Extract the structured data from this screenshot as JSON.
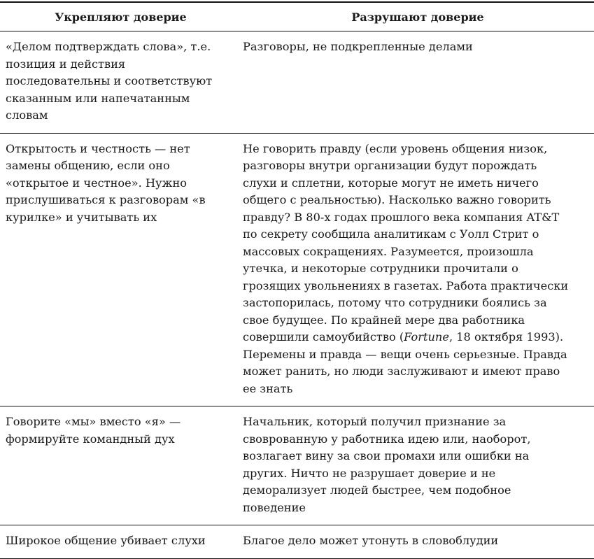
{
  "headers": [
    "Укрепляют доверие",
    "Разрушают доверие"
  ],
  "rows": [
    {
      "left": [
        "«Делом подтверждать слова», т.е.",
        "позиция и действия",
        "последовательны и соответствуют",
        "сказанным или напечатанным",
        "словам"
      ],
      "right": [
        "Разговоры, не подкрепленные делами"
      ]
    },
    {
      "left": [
        "Открытость и честность — нет",
        "замены общению, если оно",
        "«открытое и честное». Нужно",
        "прислушиваться к разговорам «в",
        "курилке» и учитывать их"
      ],
      "right": [
        "Не говорить правду (если уровень общения низок,",
        "разговоры внутри организации будут порождать",
        "слухи и сплетни, которые могут не иметь ничего",
        "общего с реальностью). Насколько важно говорить",
        "правду? В 80-х годах прошлого века компания AT&T",
        "по секрету сообщила аналитикам с Уолл Стрит о",
        "массовых сокращениях. Разумеется, произошла",
        "утечка, и некоторые сотрудники прочитали о",
        "грозящих увольнениях в газетах. Работа практически",
        "застопорилась, потому что сотрудники боялись за",
        "свое будущее. По крайней мере два работника",
        "совершили самоубийство (",
        "Перемены и правда — вещи очень серьезные. Правда",
        "может ранить, но люди заслуживают и имеют право",
        "ее знать"
      ],
      "right_italic": "Fortune",
      "right_after_italic": ", 18 октября 1993)."
    },
    {
      "left": [
        "Говорите «мы» вместо «я» —",
        "формируйте командный дух"
      ],
      "right": [
        "Начальник, который получил признание за",
        "своврованную у работника идею или, наоборот,",
        "возлагает вину за свои промахи или ошибки на",
        "других. Ничто не разрушает доверие и не",
        "деморализует людей быстрее, чем подобное",
        "поведение"
      ]
    },
    {
      "left": [
        "Широкое общение убивает слухи"
      ],
      "right": [
        "Благое дело может утонуть в словоблудии"
      ]
    }
  ]
}
